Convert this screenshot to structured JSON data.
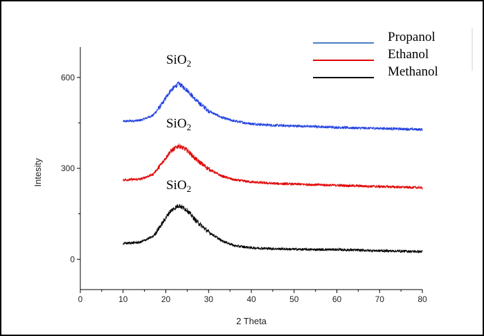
{
  "chart_data": {
    "type": "line",
    "xlabel": "2 Theta",
    "ylabel": "Intesity",
    "xlim": [
      0,
      80
    ],
    "ylim": [
      -100,
      700
    ],
    "x_ticks": [
      0,
      10,
      20,
      30,
      40,
      50,
      60,
      70,
      80
    ],
    "y_ticks": [
      0,
      300,
      600
    ],
    "grid": false,
    "legend_position": "top-right",
    "annotations": [
      {
        "text": "SiO",
        "sub": "2",
        "series": "Propanol",
        "x": 23,
        "y": 645
      },
      {
        "text": "SiO",
        "sub": "2",
        "series": "Ethanol",
        "x": 23,
        "y": 435
      },
      {
        "text": "SiO",
        "sub": "2",
        "series": "Methanol",
        "x": 23,
        "y": 232
      }
    ],
    "series": [
      {
        "name": "Propanol",
        "color": "#1f3fe0",
        "legend_color": "#4a7fc8",
        "x": [
          10,
          14,
          17,
          19,
          21,
          23,
          25,
          27,
          30,
          33,
          36,
          40,
          45,
          50,
          55,
          60,
          65,
          70,
          75,
          80
        ],
        "y": [
          455,
          458,
          475,
          510,
          555,
          580,
          558,
          525,
          490,
          468,
          456,
          447,
          442,
          440,
          438,
          435,
          433,
          432,
          430,
          428
        ]
      },
      {
        "name": "Ethanol",
        "color": "#e00000",
        "legend_color": "#e00000",
        "x": [
          10,
          14,
          17,
          19,
          21,
          23,
          25,
          27,
          30,
          33,
          36,
          40,
          45,
          50,
          55,
          60,
          65,
          70,
          75,
          80
        ],
        "y": [
          262,
          264,
          280,
          315,
          355,
          375,
          360,
          330,
          298,
          275,
          262,
          255,
          250,
          248,
          246,
          244,
          242,
          240,
          238,
          236
        ]
      },
      {
        "name": "Methanol",
        "color": "#000000",
        "legend_color": "#000000",
        "x": [
          10,
          14,
          17,
          19,
          21,
          23,
          25,
          27,
          30,
          33,
          36,
          40,
          45,
          50,
          55,
          60,
          65,
          70,
          75,
          80
        ],
        "y": [
          52,
          56,
          75,
          115,
          158,
          178,
          162,
          128,
          90,
          62,
          45,
          38,
          35,
          33,
          32,
          32,
          30,
          28,
          27,
          25
        ]
      }
    ]
  }
}
